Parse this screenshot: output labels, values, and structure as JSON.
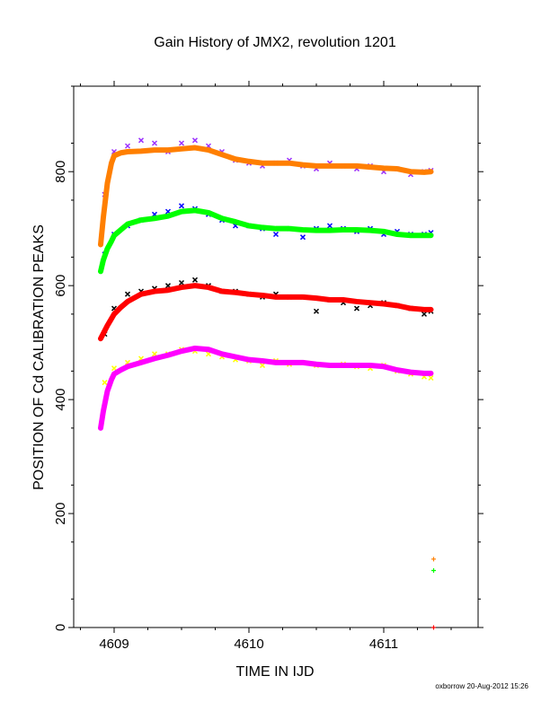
{
  "chart_data": {
    "type": "scatter",
    "title": "Gain History of JMX2, revolution 1201",
    "xlabel": "TIME IN IJD",
    "ylabel": "POSITION OF Cd CALIBRATION PEAKS",
    "xlim": [
      4608.7,
      4611.7
    ],
    "ylim": [
      0,
      950
    ],
    "xticks": [
      "4609",
      "4610",
      "4611"
    ],
    "yticks": [
      "0",
      "200",
      "400",
      "600",
      "800"
    ],
    "grid": false,
    "legend": "none",
    "series": [
      {
        "color": "#9b30ff",
        "marker": "x",
        "x": [
          4608.93,
          4609.0,
          4609.1,
          4609.2,
          4609.3,
          4609.4,
          4609.5,
          4609.6,
          4609.7,
          4609.8,
          4609.9,
          4610.0,
          4610.1,
          4610.2,
          4610.3,
          4610.4,
          4610.5,
          4610.6,
          4610.7,
          4610.8,
          4610.9,
          4611.0,
          4611.1,
          4611.2,
          4611.3,
          4611.35
        ],
        "y": [
          760,
          835,
          845,
          855,
          850,
          835,
          850,
          855,
          845,
          835,
          820,
          815,
          810,
          815,
          820,
          810,
          805,
          815,
          810,
          805,
          810,
          800,
          805,
          795,
          800,
          802
        ]
      },
      {
        "color": "#ff7f00",
        "marker": "+ (smoothed)",
        "x": [
          4608.9,
          4608.92,
          4608.95,
          4608.98,
          4609.0,
          4609.05,
          4609.1,
          4609.2,
          4609.3,
          4609.4,
          4609.5,
          4609.6,
          4609.7,
          4609.8,
          4609.9,
          4610.0,
          4610.1,
          4610.2,
          4610.3,
          4610.4,
          4610.5,
          4610.6,
          4610.7,
          4610.8,
          4610.9,
          4611.0,
          4611.1,
          4611.2,
          4611.3,
          4611.35
        ],
        "y": [
          672,
          720,
          780,
          815,
          828,
          833,
          835,
          836,
          838,
          838,
          840,
          842,
          838,
          830,
          822,
          818,
          815,
          815,
          815,
          812,
          810,
          810,
          810,
          810,
          808,
          806,
          805,
          800,
          799,
          800
        ]
      },
      {
        "color": "#0000ff",
        "marker": "x",
        "x": [
          4608.93,
          4609.0,
          4609.1,
          4609.2,
          4609.3,
          4609.4,
          4609.5,
          4609.6,
          4609.7,
          4609.8,
          4609.9,
          4610.0,
          4610.1,
          4610.2,
          4610.3,
          4610.4,
          4610.5,
          4610.6,
          4610.7,
          4610.8,
          4610.9,
          4611.0,
          4611.1,
          4611.2,
          4611.3,
          4611.35
        ],
        "y": [
          655,
          690,
          705,
          715,
          725,
          730,
          740,
          735,
          725,
          715,
          705,
          705,
          700,
          690,
          700,
          685,
          700,
          705,
          700,
          695,
          700,
          690,
          695,
          690,
          690,
          693
        ]
      },
      {
        "color": "#00ff00",
        "marker": "+ (smoothed)",
        "x": [
          4608.9,
          4608.92,
          4608.95,
          4608.98,
          4609.0,
          4609.05,
          4609.1,
          4609.2,
          4609.3,
          4609.4,
          4609.5,
          4609.6,
          4609.7,
          4609.8,
          4609.9,
          4610.0,
          4610.1,
          4610.2,
          4610.3,
          4610.4,
          4610.5,
          4610.6,
          4610.7,
          4610.8,
          4610.9,
          4611.0,
          4611.1,
          4611.2,
          4611.3,
          4611.35
        ],
        "y": [
          625,
          645,
          665,
          678,
          688,
          698,
          708,
          715,
          718,
          722,
          730,
          732,
          728,
          718,
          712,
          705,
          702,
          700,
          700,
          698,
          697,
          697,
          698,
          698,
          697,
          695,
          690,
          688,
          688,
          688
        ]
      },
      {
        "color": "#000000",
        "marker": "x",
        "x": [
          4608.93,
          4609.0,
          4609.1,
          4609.2,
          4609.3,
          4609.4,
          4609.5,
          4609.6,
          4609.7,
          4609.8,
          4609.9,
          4610.0,
          4610.1,
          4610.2,
          4610.3,
          4610.4,
          4610.5,
          4610.6,
          4610.7,
          4610.8,
          4610.9,
          4611.0,
          4611.1,
          4611.2,
          4611.3,
          4611.35
        ],
        "y": [
          515,
          560,
          585,
          590,
          595,
          600,
          605,
          610,
          600,
          590,
          590,
          585,
          580,
          585,
          580,
          580,
          555,
          575,
          570,
          560,
          565,
          570,
          565,
          560,
          550,
          555
        ]
      },
      {
        "color": "#ff0000",
        "marker": "+ (smoothed)",
        "x": [
          4608.9,
          4608.95,
          4609.0,
          4609.05,
          4609.1,
          4609.2,
          4609.3,
          4609.4,
          4609.5,
          4609.6,
          4609.7,
          4609.8,
          4609.9,
          4610.0,
          4610.1,
          4610.2,
          4610.3,
          4610.4,
          4610.5,
          4610.6,
          4610.7,
          4610.8,
          4610.9,
          4611.0,
          4611.1,
          4611.2,
          4611.3,
          4611.35
        ],
        "y": [
          507,
          530,
          550,
          562,
          572,
          585,
          590,
          592,
          597,
          600,
          597,
          590,
          588,
          585,
          583,
          580,
          580,
          580,
          578,
          575,
          575,
          572,
          570,
          568,
          565,
          560,
          558,
          558
        ]
      },
      {
        "color": "#ffff00",
        "marker": "x",
        "x": [
          4608.93,
          4609.0,
          4609.1,
          4609.2,
          4609.3,
          4609.4,
          4609.5,
          4609.6,
          4609.7,
          4609.8,
          4609.9,
          4610.0,
          4610.1,
          4610.2,
          4610.3,
          4610.4,
          4610.5,
          4610.6,
          4610.7,
          4610.8,
          4610.9,
          4611.0,
          4611.1,
          4611.2,
          4611.3,
          4611.35
        ],
        "y": [
          430,
          455,
          465,
          472,
          480,
          480,
          488,
          485,
          480,
          475,
          470,
          468,
          460,
          468,
          462,
          465,
          460,
          460,
          462,
          458,
          455,
          460,
          450,
          445,
          440,
          438
        ]
      },
      {
        "color": "#ff00ff",
        "marker": "+ (smoothed)",
        "x": [
          4608.9,
          4608.92,
          4608.95,
          4608.98,
          4609.0,
          4609.05,
          4609.1,
          4609.2,
          4609.3,
          4609.4,
          4609.5,
          4609.6,
          4609.7,
          4609.8,
          4609.9,
          4610.0,
          4610.1,
          4610.2,
          4610.3,
          4610.4,
          4610.5,
          4610.6,
          4610.7,
          4610.8,
          4610.9,
          4611.0,
          4611.1,
          4611.2,
          4611.3,
          4611.35
        ],
        "y": [
          350,
          380,
          415,
          435,
          445,
          452,
          458,
          465,
          472,
          478,
          485,
          490,
          488,
          480,
          475,
          470,
          468,
          465,
          465,
          465,
          462,
          460,
          460,
          460,
          460,
          458,
          452,
          448,
          446,
          446
        ]
      },
      {
        "color": "#ff7f00",
        "marker": "+",
        "x": [
          4611.37
        ],
        "y": [
          120
        ]
      },
      {
        "color": "#00ff00",
        "marker": "+",
        "x": [
          4611.37
        ],
        "y": [
          100
        ]
      },
      {
        "color": "#ff0000",
        "marker": "+",
        "x": [
          4611.37
        ],
        "y": [
          0
        ]
      }
    ]
  },
  "footer": "oxborrow 20-Aug-2012 15:26"
}
